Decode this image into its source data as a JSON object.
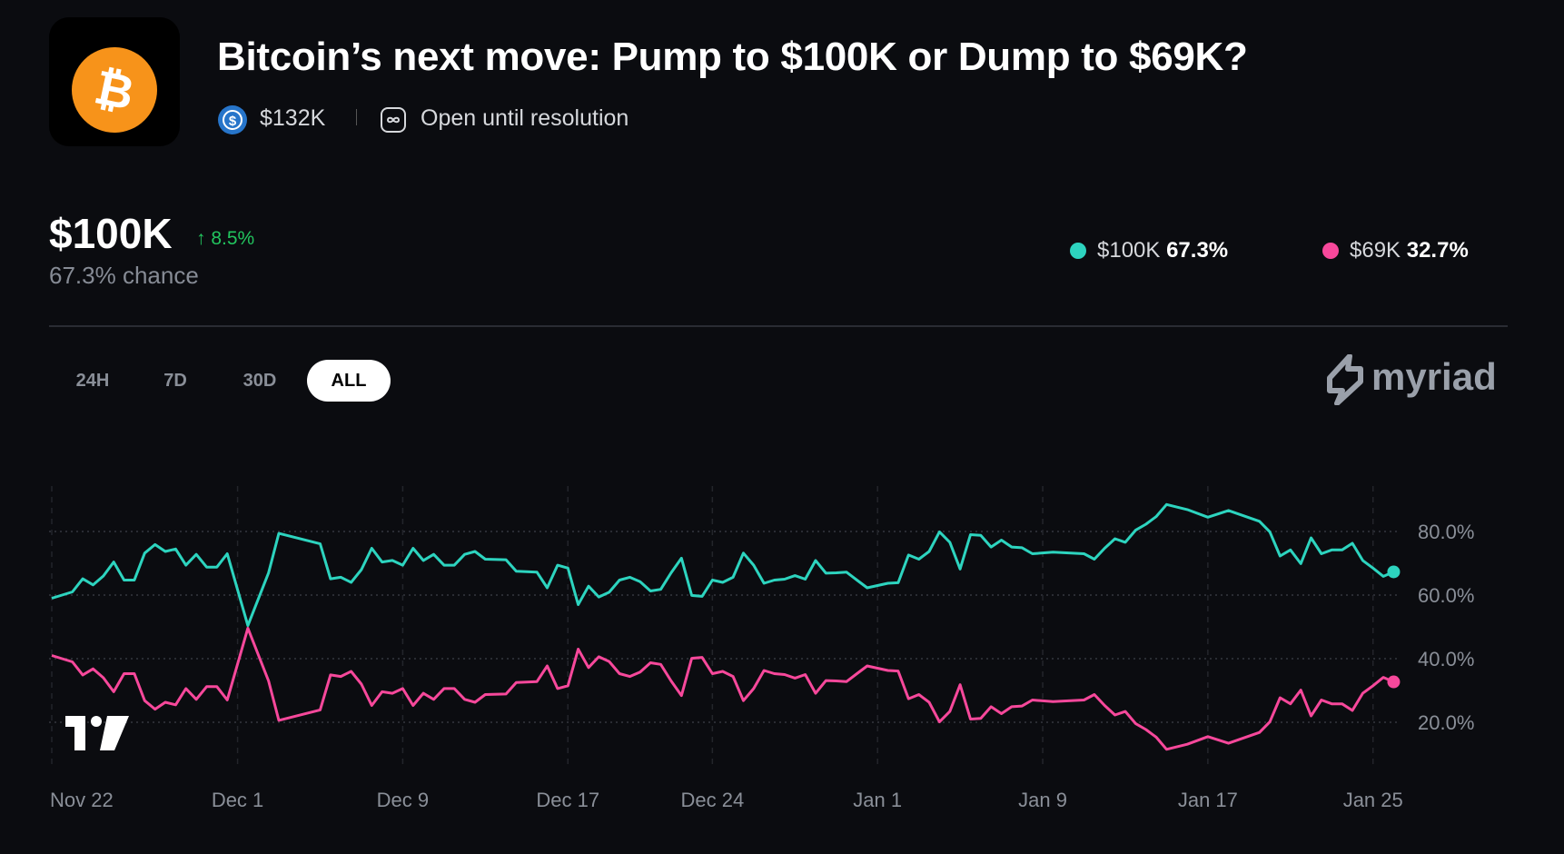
{
  "header": {
    "title": "Bitcoin’s next move: Pump to $100K or Dump to $69K?",
    "volume": "$132K",
    "status": "Open until resolution",
    "icons": {
      "market": "bitcoin-logo",
      "volume": "usdc-coin-icon",
      "status": "infinity-icon"
    }
  },
  "summary": {
    "outcome": "$100K",
    "change": "↑ 8.5%",
    "chance": "67.3% chance"
  },
  "legend": [
    {
      "label": "$100K",
      "value": "67.3%",
      "color": "#2dd4bf"
    },
    {
      "label": "$69K",
      "value": "32.7%",
      "color": "#f7489b"
    }
  ],
  "tabs": [
    {
      "label": "24H",
      "active": false
    },
    {
      "label": "7D",
      "active": false
    },
    {
      "label": "30D",
      "active": false
    },
    {
      "label": "ALL",
      "active": true
    }
  ],
  "brand": "myriad",
  "colors": {
    "background": "#0b0c10",
    "up": "#22c55e",
    "grid": "#2a2c33"
  },
  "chart_data": {
    "type": "line",
    "xlabel": "",
    "ylabel": "",
    "x_ticks": [
      "Nov 22",
      "Dec 1",
      "Dec 9",
      "Dec 17",
      "Dec 24",
      "Jan 1",
      "Jan 9",
      "Jan 17",
      "Jan 25"
    ],
    "y_ticks": [
      "20.0%",
      "40.0%",
      "60.0%",
      "80.0%"
    ],
    "y_tick_values": [
      20,
      40,
      60,
      80
    ],
    "ylim": [
      5,
      95
    ],
    "grid": true,
    "legend": "top-right",
    "x": [
      "Nov 22 00:00",
      "Nov 23 00:00",
      "Nov 23 12:00",
      "Nov 24 00:00",
      "Nov 24 12:00",
      "Nov 25 00:00",
      "Nov 25 12:00",
      "Nov 26 00:00",
      "Nov 26 12:00",
      "Nov 27 00:00",
      "Nov 27 12:00",
      "Nov 28 00:00",
      "Nov 28 12:00",
      "Nov 29 00:00",
      "Nov 29 12:00",
      "Nov 30 00:00",
      "Nov 30 12:00",
      "Dec 1 12:00",
      "Dec 2 12:00",
      "Dec 3 00:00",
      "Dec 5 00:00",
      "Dec 5 12:00",
      "Dec 6 00:00",
      "Dec 6 12:00",
      "Dec 7 00:00",
      "Dec 7 12:00",
      "Dec 8 00:00",
      "Dec 8 12:00",
      "Dec 9 00:00",
      "Dec 9 12:00",
      "Dec 10 00:00",
      "Dec 10 12:00",
      "Dec 11 00:00",
      "Dec 11 12:00",
      "Dec 12 00:00",
      "Dec 12 12:00",
      "Dec 13 00:00",
      "Dec 14 00:00",
      "Dec 14 12:00",
      "Dec 15 12:00",
      "Dec 16 00:00",
      "Dec 16 12:00",
      "Dec 17 00:00",
      "Dec 17 12:00",
      "Dec 18 00:00",
      "Dec 18 12:00",
      "Dec 19 00:00",
      "Dec 19 12:00",
      "Dec 20 00:00",
      "Dec 20 12:00",
      "Dec 21 00:00",
      "Dec 21 12:00",
      "Dec 22 00:00",
      "Dec 22 12:00",
      "Dec 23 00:00",
      "Dec 23 12:00",
      "Dec 24 00:00",
      "Dec 24 12:00",
      "Dec 25 00:00",
      "Dec 25 12:00",
      "Dec 26 00:00",
      "Dec 26 12:00",
      "Dec 27 00:00",
      "Dec 27 12:00",
      "Dec 28 00:00",
      "Dec 28 12:00",
      "Dec 29 00:00",
      "Dec 29 12:00",
      "Dec 30 00:00",
      "Dec 30 12:00",
      "Dec 31 00:00",
      "Dec 31 12:00",
      "Jan 1 12:00",
      "Jan 2 00:00",
      "Jan 2 12:00",
      "Jan 3 00:00",
      "Jan 3 12:00",
      "Jan 4 00:00",
      "Jan 4 12:00",
      "Jan 5 00:00",
      "Jan 5 12:00",
      "Jan 6 00:00",
      "Jan 6 12:00",
      "Jan 7 00:00",
      "Jan 7 12:00",
      "Jan 8 00:00",
      "Jan 8 12:00",
      "Jan 9 12:00",
      "Jan 11 00:00",
      "Jan 11 12:00",
      "Jan 12 00:00",
      "Jan 12 12:00",
      "Jan 13 00:00",
      "Jan 13 12:00",
      "Jan 14 00:00",
      "Jan 14 12:00",
      "Jan 15 00:00",
      "Jan 16 00:00",
      "Jan 17 00:00",
      "Jan 18 00:00",
      "Jan 19 12:00",
      "Jan 20 00:00",
      "Jan 20 12:00",
      "Jan 21 00:00",
      "Jan 21 12:00",
      "Jan 22 00:00",
      "Jan 22 12:00",
      "Jan 23 00:00",
      "Jan 23 12:00",
      "Jan 24 00:00",
      "Jan 24 12:00",
      "Jan 25 00:00",
      "Jan 25 12:00",
      "Jan 26 00:00"
    ],
    "series": [
      {
        "name": "$100K",
        "color": "#2dd4bf",
        "values": [
          59,
          61,
          65.1,
          63.2,
          66,
          70.4,
          64.7,
          64.7,
          73.2,
          75.9,
          73.7,
          74.5,
          69.4,
          72.8,
          68.8,
          68.8,
          73,
          50.4,
          67,
          79.4,
          76.1,
          65.1,
          65.6,
          64,
          68,
          74.7,
          70.4,
          70.9,
          69.4,
          74.7,
          70.9,
          72.8,
          69.4,
          69.4,
          72.8,
          73.7,
          71.3,
          71.1,
          67.5,
          67.2,
          62.3,
          69.4,
          68.5,
          57,
          62.8,
          59.4,
          60.9,
          64.7,
          65.6,
          64.2,
          61.3,
          61.8,
          67,
          71.6,
          59.9,
          59.6,
          64.7,
          64,
          65.6,
          73.2,
          69.4,
          63.7,
          64.7,
          65,
          66.1,
          65,
          70.9,
          66.9,
          67,
          67.2,
          64.7,
          62.3,
          63.7,
          63.9,
          72.6,
          71.3,
          73.7,
          79.9,
          76.6,
          68.2,
          79,
          78.8,
          75.1,
          77.3,
          75.1,
          74.9,
          73,
          73.5,
          73,
          71.3,
          74.7,
          77.7,
          76.6,
          80.4,
          82.3,
          84.7,
          88.5,
          86.9,
          84.5,
          86.6,
          83.2,
          79.9,
          72.3,
          74.2,
          69.9,
          78,
          73,
          74.2,
          74.2,
          76.3,
          70.9,
          68.5,
          65.9,
          67.3
        ]
      },
      {
        "name": "$69K",
        "color": "#f7489b",
        "values": [
          41,
          39,
          34.9,
          36.8,
          34,
          29.6,
          35.3,
          35.3,
          26.8,
          24.1,
          26.3,
          25.5,
          30.6,
          27.2,
          31.2,
          31.2,
          27,
          49.6,
          33,
          20.6,
          23.9,
          34.9,
          34.4,
          36,
          32,
          25.3,
          29.6,
          29.1,
          30.6,
          25.3,
          29.1,
          27.2,
          30.6,
          30.6,
          27.2,
          26.3,
          28.7,
          28.9,
          32.5,
          32.8,
          37.7,
          30.6,
          31.5,
          43,
          37.2,
          40.6,
          39.1,
          35.3,
          34.4,
          35.8,
          38.7,
          38.2,
          33,
          28.4,
          40.1,
          40.4,
          35.3,
          36,
          34.4,
          26.8,
          30.6,
          36.3,
          35.3,
          35,
          33.9,
          35,
          29.1,
          33.1,
          33,
          32.8,
          35.3,
          37.7,
          36.3,
          36.1,
          27.4,
          28.7,
          26.3,
          20.1,
          23.4,
          31.8,
          21,
          21.2,
          24.9,
          22.7,
          24.9,
          25.1,
          27,
          26.5,
          27,
          28.7,
          25.3,
          22.3,
          23.4,
          19.6,
          17.7,
          15.3,
          11.5,
          13.1,
          15.5,
          13.4,
          16.8,
          20.1,
          27.7,
          25.8,
          30.1,
          22,
          27,
          25.8,
          25.8,
          23.7,
          29.1,
          31.5,
          34.1,
          32.7
        ]
      }
    ]
  }
}
